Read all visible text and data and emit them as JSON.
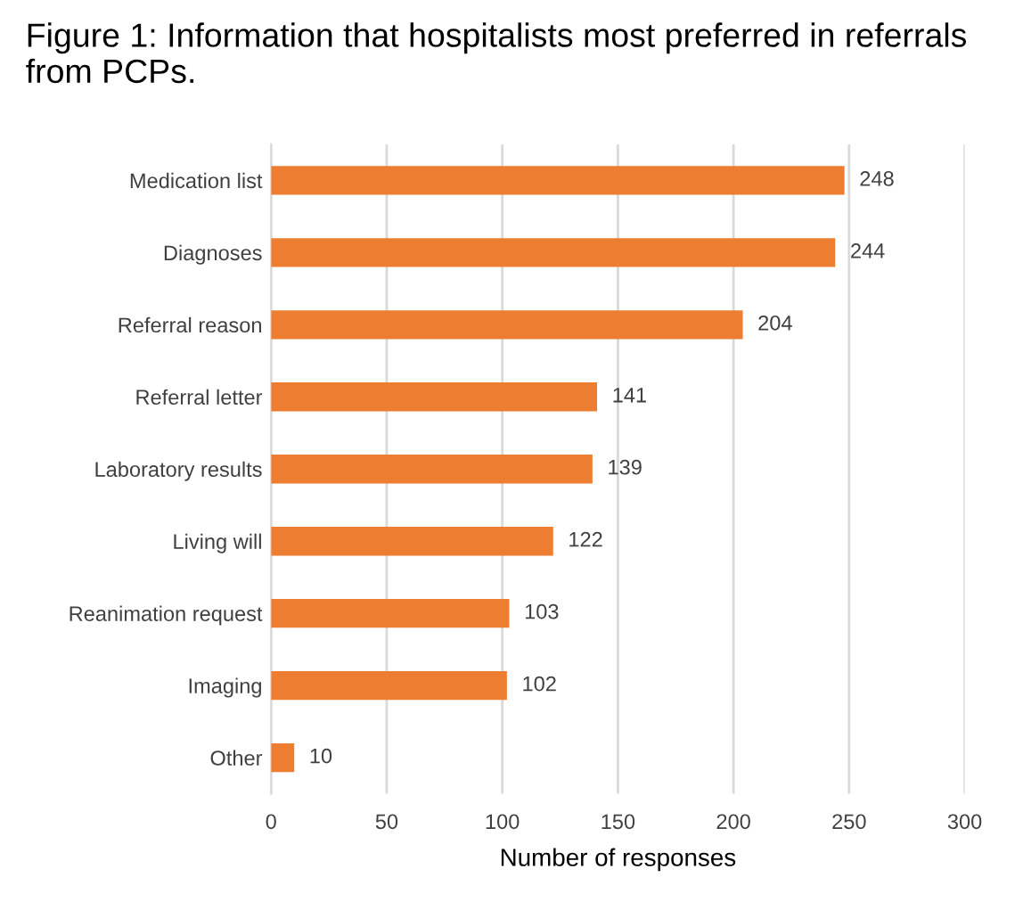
{
  "chart_data": {
    "type": "bar",
    "orientation": "horizontal",
    "title": "Figure 1: Information that hospitalists most preferred in referrals from PCPs.",
    "xlabel": "Number of responses",
    "categories": [
      "Medication list",
      "Diagnoses",
      "Referral reason",
      "Referral letter",
      "Laboratory results",
      "Living will",
      "Reanimation request",
      "Imaging",
      "Other"
    ],
    "values": [
      248,
      244,
      204,
      141,
      139,
      122,
      103,
      102,
      10
    ],
    "color": "#ed7d31",
    "xlim": [
      0,
      300
    ],
    "xticks": [
      0,
      50,
      100,
      150,
      200,
      250,
      300
    ],
    "grid": "x",
    "data_labels": true
  }
}
